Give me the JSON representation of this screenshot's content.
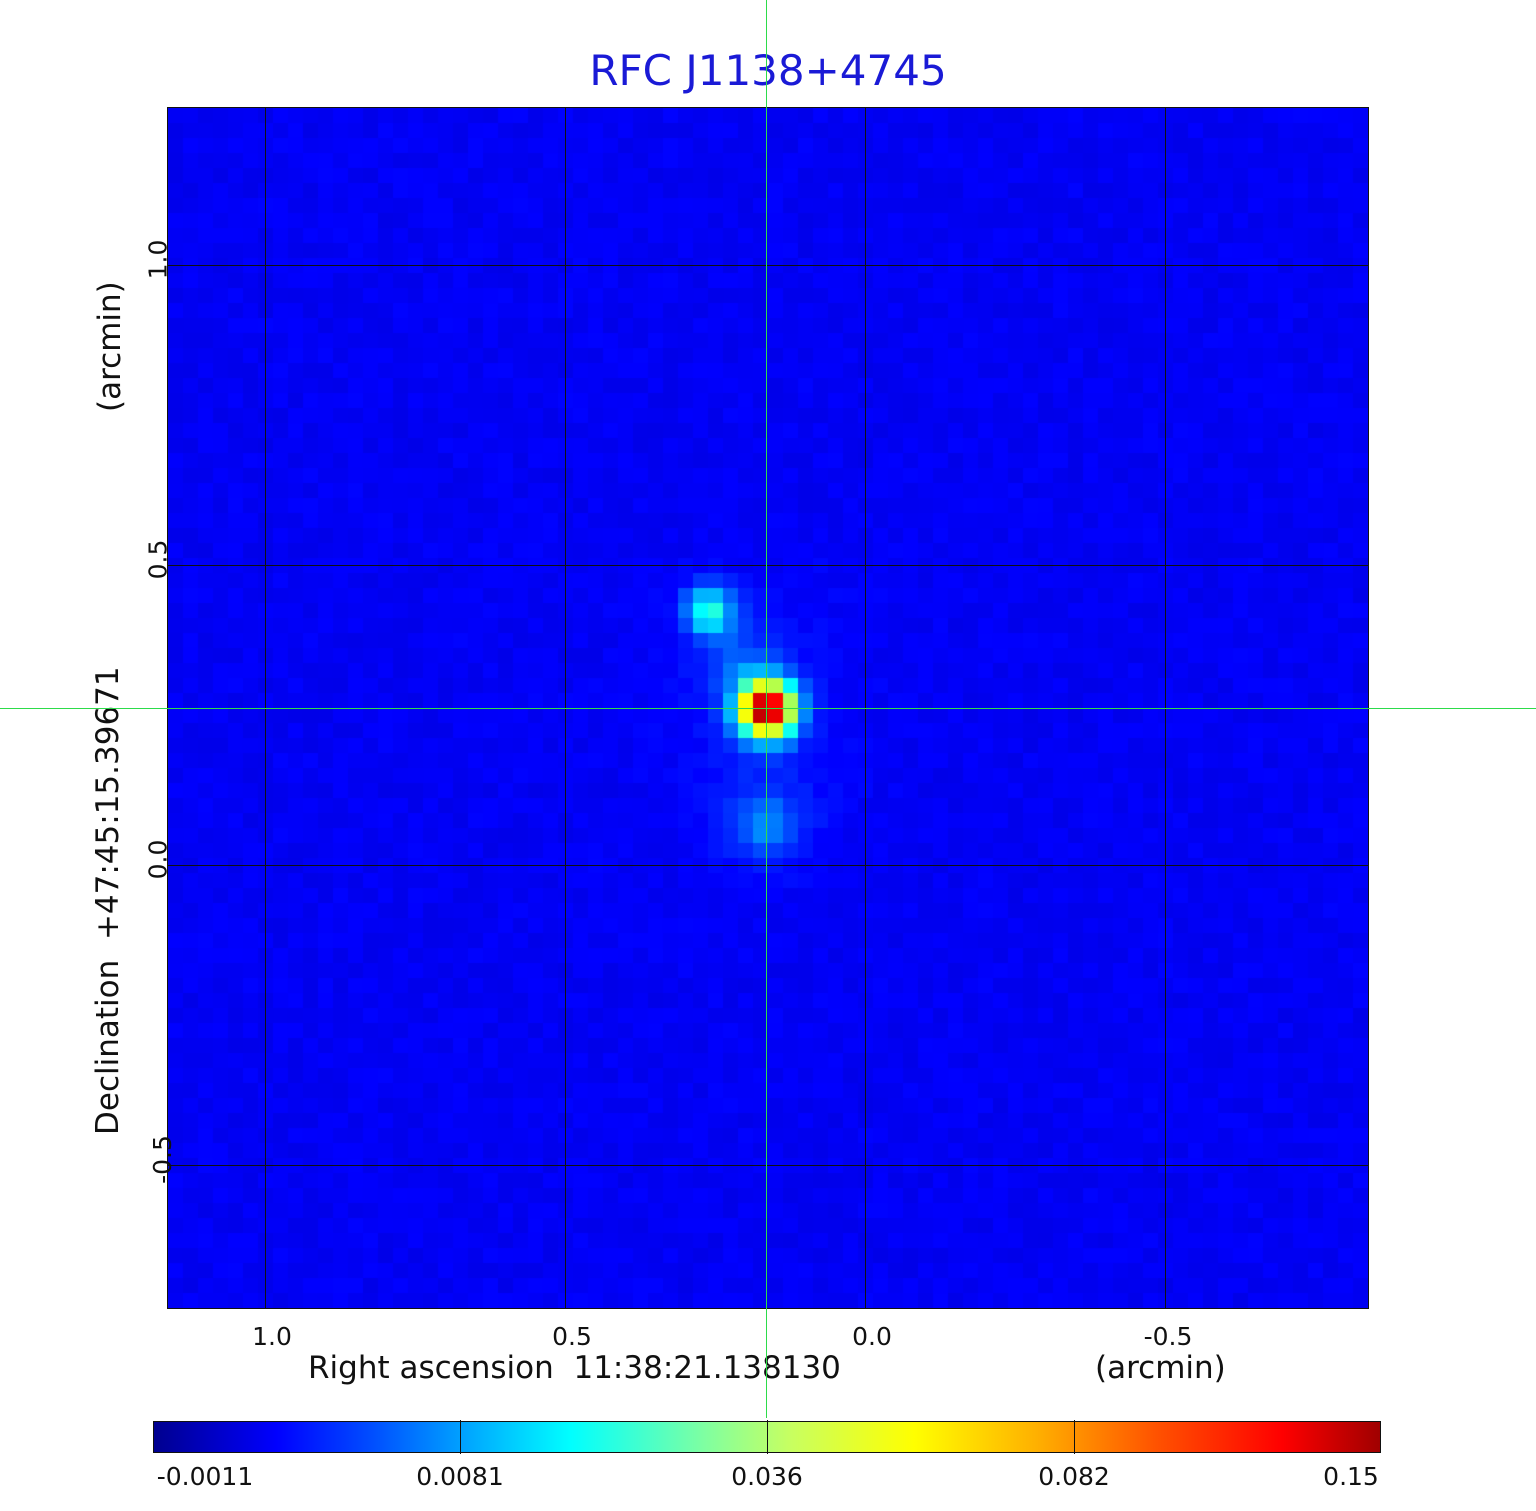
{
  "title": "RFC J1138+4745",
  "x_axis": {
    "label": "Right ascension  11:38:21.138130",
    "unit": "(arcmin)",
    "ticks": [
      "1.0",
      "0.5",
      "0.0",
      "-0.5"
    ]
  },
  "y_axis": {
    "label": "Declination  +47:45:15.39671",
    "unit": "(arcmin)",
    "ticks": [
      "1.0",
      "0.5",
      "0.0",
      "-0.5"
    ]
  },
  "colorbar": {
    "colormap": "jet",
    "ticks": [
      "-0.0011",
      "0.0081",
      "0.036",
      "0.082",
      "0.15"
    ]
  },
  "colors": {
    "title": "#1a1ad6",
    "crosshair": "#2ddc4a",
    "background": "#0a2cf0"
  }
}
